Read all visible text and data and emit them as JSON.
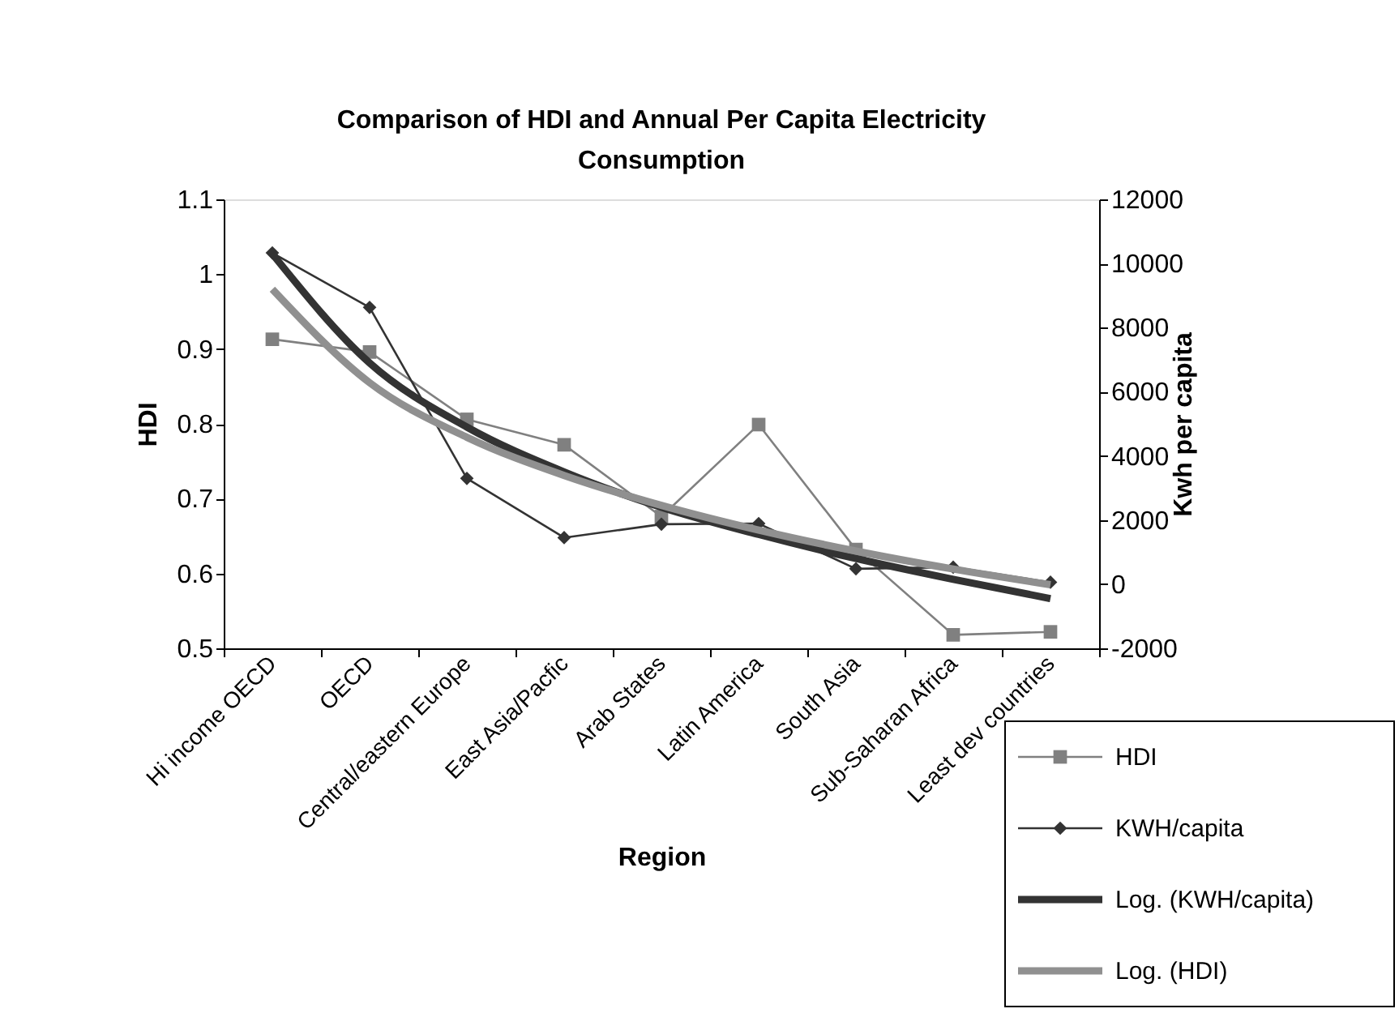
{
  "chart_data": {
    "type": "line",
    "title": "Comparison of HDI and Annual Per Capita Electricity Consumption",
    "xlabel": "Region",
    "ylabel": "HDI",
    "y2label": "Kwh per capita",
    "categories": [
      "Hi income OECD",
      "OECD",
      "Central/eastern Europe",
      "East Asia/Pacfic",
      "Arab States",
      "Latin America",
      "South Asia",
      "Sub-Saharan Africa",
      "Least dev countries"
    ],
    "series": [
      {
        "name": "HDI",
        "color": "#808080",
        "marker": "square",
        "values": [
          0.913,
          0.896,
          0.806,
          0.772,
          0.676,
          0.799,
          0.632,
          0.518,
          0.522
        ]
      },
      {
        "name": "KWH/capita",
        "color": "#333333",
        "marker": "diamond",
        "axis": "y2",
        "values": [
          10330,
          8630,
          3300,
          1450,
          1870,
          1890,
          480,
          530,
          60
        ]
      },
      {
        "name": "Log. (KWH/capita)",
        "color": "#333333",
        "marker": "none",
        "axis": "y2",
        "values": [
          10300,
          6900,
          4900,
          3500,
          2400,
          1550,
          800,
          150,
          -450
        ]
      },
      {
        "name": "Log. (HDI)",
        "color": "#909090",
        "marker": "none",
        "values": [
          0.98,
          0.855,
          0.782,
          0.731,
          0.691,
          0.658,
          0.63,
          0.606,
          0.585
        ]
      }
    ],
    "ylim": [
      0.5,
      1.1
    ],
    "yticks": [
      0.5,
      0.6,
      0.7,
      0.8,
      0.9,
      1,
      1.1
    ],
    "y2lim": [
      -2000,
      12000
    ],
    "y2ticks": [
      -2000,
      0,
      2000,
      4000,
      6000,
      8000,
      10000,
      12000
    ],
    "grid": false,
    "legend": "bottom right",
    "line_style": "solid"
  }
}
